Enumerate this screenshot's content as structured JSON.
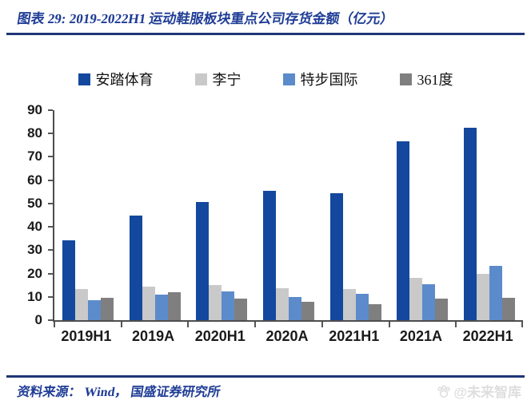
{
  "header": {
    "title": "图表 29:  2019-2022H1 运动鞋服板块重点公司存货金额（亿元）"
  },
  "footer": {
    "source": "资料来源： Wind， 国盛证券研究所",
    "watermark_text": "@未来智库"
  },
  "colors": {
    "rule": "#1e3576",
    "title_text": "#1f3d96",
    "footer_text": "#1f3d96",
    "watermark": "#dedede",
    "axis": "#4d4d4d"
  },
  "chart_data": {
    "type": "bar",
    "title": "2019-2022H1 运动鞋服板块重点公司存货金额（亿元）",
    "xlabel": "",
    "ylabel": "存货金额（亿元）",
    "ylim": [
      0,
      90
    ],
    "yticks": [
      0,
      10,
      20,
      30,
      40,
      50,
      60,
      70,
      80,
      90
    ],
    "grid": false,
    "legend_position": "top",
    "categories": [
      "2019H1",
      "2019A",
      "2020H1",
      "2020A",
      "2021H1",
      "2021A",
      "2022H1"
    ],
    "series": [
      {
        "name": "安踏体育",
        "color": "#14489e",
        "values": [
          34.2,
          44.8,
          50.7,
          55.4,
          54.4,
          76.8,
          82.4
        ]
      },
      {
        "name": "李宁",
        "color": "#c9c9c9",
        "values": [
          13.5,
          14.3,
          15.2,
          13.7,
          13.4,
          18.0,
          20.0
        ]
      },
      {
        "name": "特步国际",
        "color": "#5c8bcb",
        "values": [
          8.4,
          10.8,
          12.3,
          10.0,
          11.3,
          15.5,
          23.4
        ]
      },
      {
        "name": "361度",
        "color": "#7f7f7f",
        "values": [
          9.6,
          11.9,
          9.2,
          8.0,
          6.7,
          9.4,
          9.5
        ]
      }
    ]
  }
}
